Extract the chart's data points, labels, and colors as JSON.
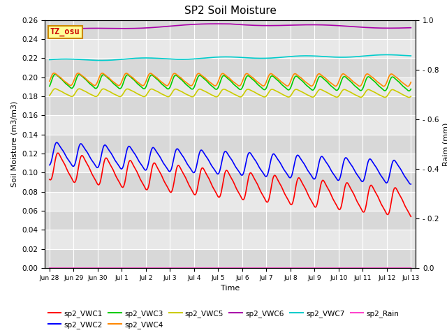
{
  "title": "SP2 Soil Moisture",
  "xlabel": "Time",
  "ylabel_left": "Soil Moisture (m3/m3)",
  "ylabel_right": "Raim (mm)",
  "ylim_left": [
    0.0,
    0.26
  ],
  "ylim_right": [
    0.0,
    1.0
  ],
  "yticks_left": [
    0.0,
    0.02,
    0.04,
    0.06,
    0.08,
    0.1,
    0.12,
    0.14,
    0.16,
    0.18,
    0.2,
    0.22,
    0.24,
    0.26
  ],
  "xtick_labels": [
    "Jun 28",
    "Jun 29",
    "Jun 30",
    "Jul 1",
    "Jul 2",
    "Jul 3",
    "Jul 4",
    "Jul 5",
    "Jul 6",
    "Jul 7",
    "Jul 8",
    "Jul 9",
    "Jul 10",
    "Jul 11",
    "Jul 12",
    "Jul 13"
  ],
  "n_points": 1500,
  "annotation_text": "TZ_osu",
  "annotation_color": "#cc0000",
  "annotation_bg": "#ffff99",
  "annotation_border": "#cc8800",
  "series": {
    "sp2_VWC1": {
      "color": "#ff0000",
      "lw": 1.2
    },
    "sp2_VWC2": {
      "color": "#0000ff",
      "lw": 1.2
    },
    "sp2_VWC3": {
      "color": "#00cc00",
      "lw": 1.2
    },
    "sp2_VWC4": {
      "color": "#ff8800",
      "lw": 1.2
    },
    "sp2_VWC5": {
      "color": "#cccc00",
      "lw": 1.2
    },
    "sp2_VWC6": {
      "color": "#aa00aa",
      "lw": 1.2
    },
    "sp2_VWC7": {
      "color": "#00cccc",
      "lw": 1.2
    },
    "sp2_Rain": {
      "color": "#ff44cc",
      "lw": 1.2
    }
  },
  "background_color": "#ffffff",
  "plot_bg_color": "#e8e8e8",
  "grid_color": "#ffffff",
  "title_fontsize": 11
}
